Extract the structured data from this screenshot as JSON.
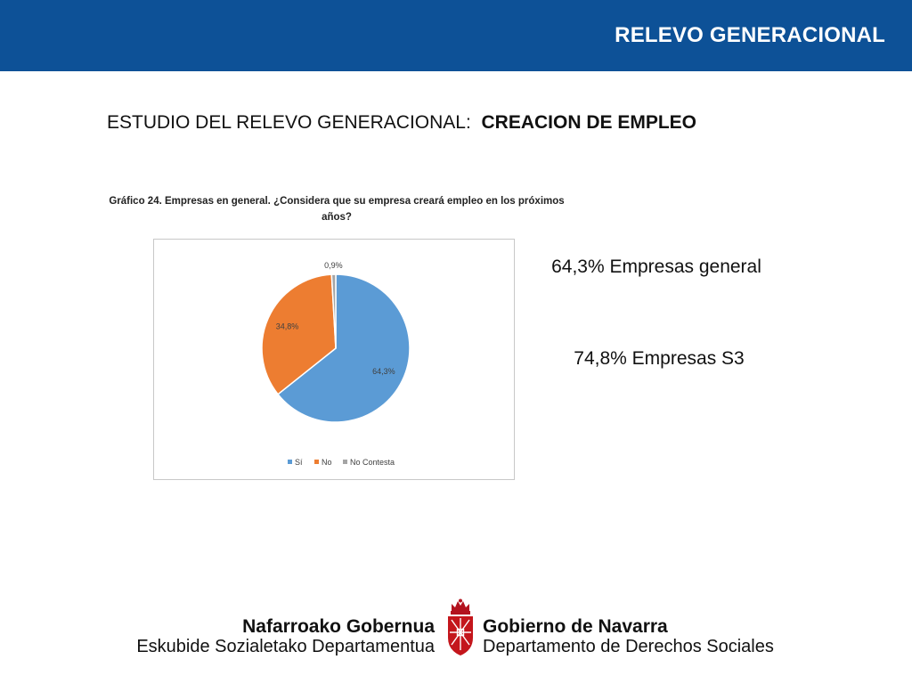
{
  "header": {
    "title": "RELEVO GENERACIONAL"
  },
  "slide": {
    "title_prefix": "ESTUDIO DEL RELEVO GENERACIONAL:",
    "title_bold": "CREACION DE EMPLEO"
  },
  "chart_caption": {
    "line1": "Gráfico 24. Empresas en general. ¿Considera que su empresa creará empleo en los próximos",
    "line2": "años?"
  },
  "chart_data": {
    "type": "pie",
    "categories": [
      "Sí",
      "No",
      "No Contesta"
    ],
    "values": [
      64.3,
      34.8,
      0.9
    ],
    "data_labels": [
      "64,3%",
      "34,8%",
      "0,9%"
    ],
    "colors": [
      "#5b9bd5",
      "#ed7d31",
      "#a5a5a5"
    ],
    "legend_position": "bottom"
  },
  "stats": {
    "general": "64,3% Empresas general",
    "s3": "74,8% Empresas S3"
  },
  "footer": {
    "eu_line1": "Nafarroako Gobernua",
    "eu_line2": "Eskubide Sozialetako Departamentua",
    "es_line1": "Gobierno de Navarra",
    "es_line2": "Departamento de Derechos Sociales"
  }
}
